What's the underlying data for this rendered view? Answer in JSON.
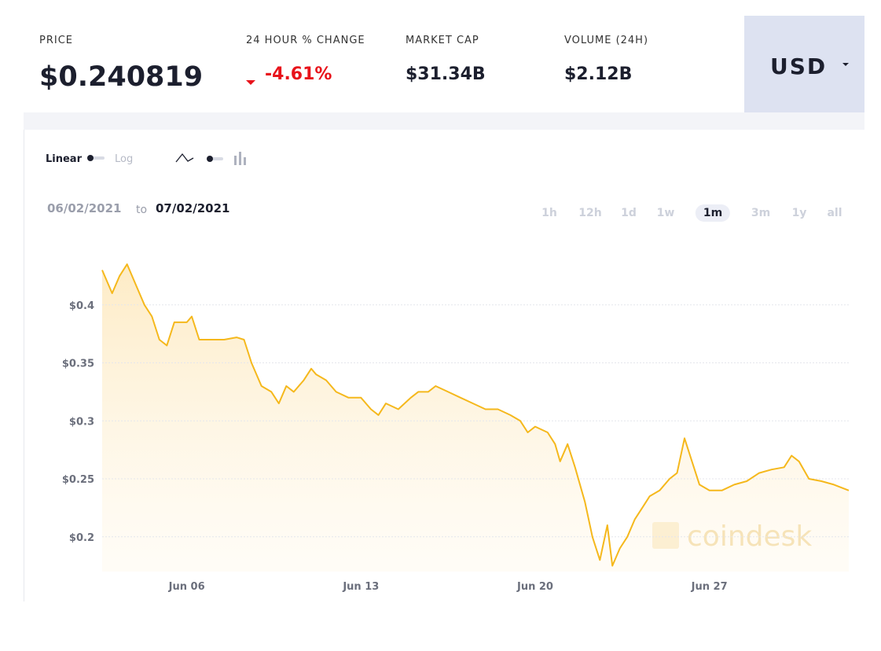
{
  "header": {
    "stats": [
      {
        "label": "PRICE",
        "value": "$0.240819"
      },
      {
        "label": "24 HOUR % CHANGE",
        "value": "-4.61%"
      },
      {
        "label": "MARKET CAP",
        "value": "$31.34B"
      },
      {
        "label": "VOLUME (24H)",
        "value": "$2.12B"
      }
    ],
    "currency": "USD"
  },
  "controls": {
    "scale": [
      "Linear",
      "Log"
    ]
  },
  "date_range": {
    "from": "06/02/2021",
    "joiner": "to",
    "to": "07/02/2021"
  },
  "ranges": [
    {
      "label": "1h",
      "active": false
    },
    {
      "label": "12h",
      "active": false
    },
    {
      "label": "1d",
      "active": false
    },
    {
      "label": "1w",
      "active": false
    },
    {
      "label": "1m",
      "active": true
    },
    {
      "label": "3m",
      "active": false
    },
    {
      "label": "1y",
      "active": false
    },
    {
      "label": "all",
      "active": false
    }
  ],
  "watermark": "coindesk",
  "chart_data": {
    "type": "line",
    "color": "#f5b81c",
    "x": [
      2.6,
      3.0,
      3.3,
      3.6,
      4.0,
      4.3,
      4.6,
      4.9,
      5.2,
      5.5,
      6.0,
      6.2,
      6.5,
      7.0,
      7.5,
      8.0,
      8.3,
      8.6,
      9.0,
      9.4,
      9.7,
      10.0,
      10.3,
      10.7,
      11.0,
      11.2,
      11.6,
      12.0,
      12.5,
      13.0,
      13.4,
      13.7,
      14.0,
      14.5,
      15.0,
      15.3,
      15.7,
      16.0,
      16.5,
      17.0,
      17.5,
      18.0,
      18.5,
      19.0,
      19.4,
      19.7,
      20.0,
      20.5,
      20.8,
      21.0,
      21.3,
      21.6,
      22.0,
      22.3,
      22.6,
      22.9,
      23.1,
      23.4,
      23.7,
      24.0,
      24.3,
      24.6,
      25.0,
      25.4,
      25.7,
      26.0,
      26.3,
      26.6,
      27.0,
      27.5,
      28.0,
      28.5,
      29.0,
      29.5,
      30.0,
      30.3,
      30.6,
      31.0,
      31.5,
      32.0,
      32.6
    ],
    "values": [
      0.43,
      0.41,
      0.425,
      0.435,
      0.415,
      0.4,
      0.39,
      0.37,
      0.365,
      0.385,
      0.385,
      0.39,
      0.37,
      0.37,
      0.37,
      0.372,
      0.37,
      0.35,
      0.33,
      0.325,
      0.315,
      0.33,
      0.325,
      0.335,
      0.345,
      0.34,
      0.335,
      0.325,
      0.32,
      0.32,
      0.31,
      0.305,
      0.315,
      0.31,
      0.32,
      0.325,
      0.325,
      0.33,
      0.325,
      0.32,
      0.315,
      0.31,
      0.31,
      0.305,
      0.3,
      0.29,
      0.295,
      0.29,
      0.28,
      0.265,
      0.28,
      0.26,
      0.23,
      0.2,
      0.18,
      0.21,
      0.175,
      0.19,
      0.2,
      0.215,
      0.225,
      0.235,
      0.24,
      0.25,
      0.255,
      0.285,
      0.265,
      0.245,
      0.24,
      0.24,
      0.245,
      0.248,
      0.255,
      0.258,
      0.26,
      0.27,
      0.265,
      0.25,
      0.248,
      0.245,
      0.24
    ],
    "xlim": [
      2.6,
      32.6
    ],
    "xticks": [
      {
        "value": 6,
        "label": "Jun 06"
      },
      {
        "value": 13,
        "label": "Jun 13"
      },
      {
        "value": 20,
        "label": "Jun 20"
      },
      {
        "value": 27,
        "label": "Jun 27"
      }
    ],
    "ylim": [
      0.17,
      0.45
    ],
    "yticks": [
      {
        "value": 0.2,
        "label": "$0.2"
      },
      {
        "value": 0.25,
        "label": "$0.25"
      },
      {
        "value": 0.3,
        "label": "$0.3"
      },
      {
        "value": 0.35,
        "label": "$0.35"
      },
      {
        "value": 0.4,
        "label": "$0.4"
      }
    ],
    "grid": true
  }
}
